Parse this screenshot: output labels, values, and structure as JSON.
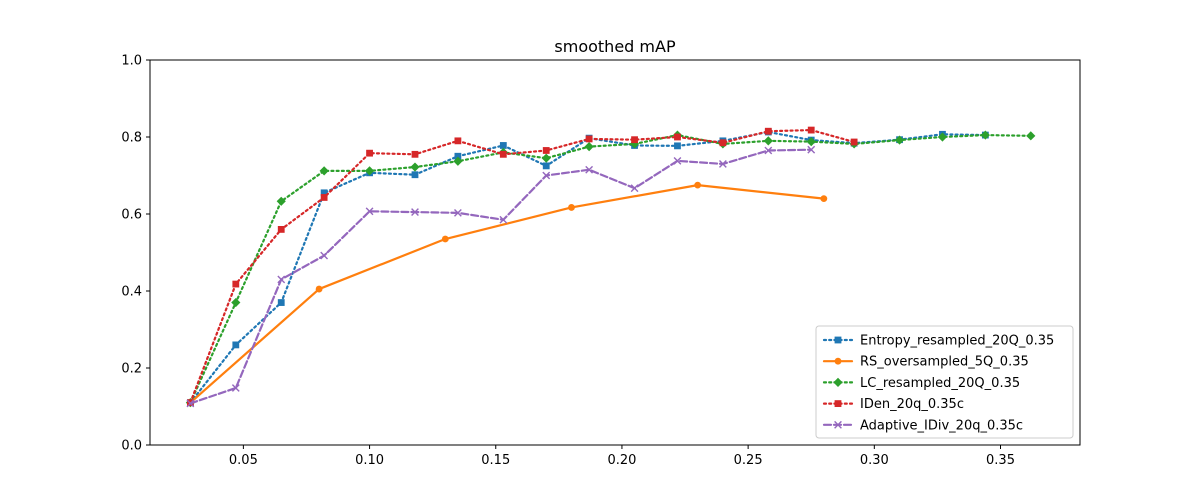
{
  "chart_data": {
    "type": "line",
    "title": "smoothed mAP",
    "xlabel": "",
    "ylabel": "",
    "xlim": [
      0.013,
      0.3815
    ],
    "ylim": [
      0,
      1.0
    ],
    "xticks": [
      0.05,
      0.1,
      0.15,
      0.2,
      0.25,
      0.3,
      0.35
    ],
    "xtick_labels": [
      "0.05",
      "0.10",
      "0.15",
      "0.20",
      "0.25",
      "0.30",
      "0.35"
    ],
    "yticks": [
      0,
      0.2,
      0.4,
      0.6,
      0.8,
      1.0
    ],
    "ytick_labels": [
      "0.0",
      "0.2",
      "0.4",
      "0.6",
      "0.8",
      "1.0"
    ],
    "grid": false,
    "legend_position": "lower-right",
    "series": [
      {
        "name": "Entropy_resampled_20Q_0.35",
        "color": "#1f77b4",
        "linestyle": "dotted",
        "marker": "square",
        "points": [
          [
            0.029,
            0.11
          ],
          [
            0.047,
            0.26
          ],
          [
            0.065,
            0.37
          ],
          [
            0.082,
            0.655
          ],
          [
            0.1,
            0.707
          ],
          [
            0.118,
            0.702
          ],
          [
            0.135,
            0.75
          ],
          [
            0.153,
            0.778
          ],
          [
            0.17,
            0.725
          ],
          [
            0.187,
            0.797
          ],
          [
            0.205,
            0.778
          ],
          [
            0.222,
            0.777
          ],
          [
            0.24,
            0.79
          ],
          [
            0.258,
            0.813
          ],
          [
            0.275,
            0.792
          ],
          [
            0.292,
            0.784
          ],
          [
            0.31,
            0.793
          ],
          [
            0.327,
            0.807
          ],
          [
            0.344,
            0.805
          ]
        ]
      },
      {
        "name": "RS_oversampled_5Q_0.35",
        "color": "#ff7f0e",
        "linestyle": "solid",
        "marker": "circle",
        "points": [
          [
            0.029,
            0.11
          ],
          [
            0.08,
            0.405
          ],
          [
            0.13,
            0.535
          ],
          [
            0.18,
            0.617
          ],
          [
            0.23,
            0.675
          ],
          [
            0.28,
            0.64
          ]
        ]
      },
      {
        "name": "LC_resampled_20Q_0.35",
        "color": "#2ca02c",
        "linestyle": "dotted",
        "marker": "diamond",
        "points": [
          [
            0.029,
            0.11
          ],
          [
            0.047,
            0.37
          ],
          [
            0.065,
            0.633
          ],
          [
            0.082,
            0.712
          ],
          [
            0.1,
            0.712
          ],
          [
            0.118,
            0.722
          ],
          [
            0.135,
            0.737
          ],
          [
            0.153,
            0.76
          ],
          [
            0.17,
            0.745
          ],
          [
            0.187,
            0.775
          ],
          [
            0.205,
            0.782
          ],
          [
            0.222,
            0.805
          ],
          [
            0.24,
            0.782
          ],
          [
            0.258,
            0.79
          ],
          [
            0.275,
            0.788
          ],
          [
            0.292,
            0.782
          ],
          [
            0.31,
            0.792
          ],
          [
            0.327,
            0.8
          ],
          [
            0.344,
            0.805
          ],
          [
            0.362,
            0.803
          ]
        ]
      },
      {
        "name": "IDen_20q_0.35c",
        "color": "#d62728",
        "linestyle": "dotted",
        "marker": "square",
        "points": [
          [
            0.029,
            0.11
          ],
          [
            0.047,
            0.418
          ],
          [
            0.065,
            0.56
          ],
          [
            0.082,
            0.643
          ],
          [
            0.1,
            0.758
          ],
          [
            0.118,
            0.755
          ],
          [
            0.135,
            0.79
          ],
          [
            0.153,
            0.755
          ],
          [
            0.17,
            0.765
          ],
          [
            0.187,
            0.795
          ],
          [
            0.205,
            0.793
          ],
          [
            0.222,
            0.8
          ],
          [
            0.24,
            0.785
          ],
          [
            0.258,
            0.815
          ],
          [
            0.275,
            0.818
          ],
          [
            0.292,
            0.787
          ]
        ]
      },
      {
        "name": "Adaptive_IDiv_20q_0.35c",
        "color": "#9467bd",
        "linestyle": "dashed",
        "marker": "x",
        "points": [
          [
            0.029,
            0.108
          ],
          [
            0.047,
            0.148
          ],
          [
            0.065,
            0.43
          ],
          [
            0.082,
            0.492
          ],
          [
            0.1,
            0.607
          ],
          [
            0.118,
            0.605
          ],
          [
            0.135,
            0.603
          ],
          [
            0.153,
            0.585
          ],
          [
            0.17,
            0.7
          ],
          [
            0.187,
            0.715
          ],
          [
            0.205,
            0.667
          ],
          [
            0.222,
            0.738
          ],
          [
            0.24,
            0.73
          ],
          [
            0.258,
            0.765
          ],
          [
            0.275,
            0.767
          ]
        ]
      }
    ]
  }
}
